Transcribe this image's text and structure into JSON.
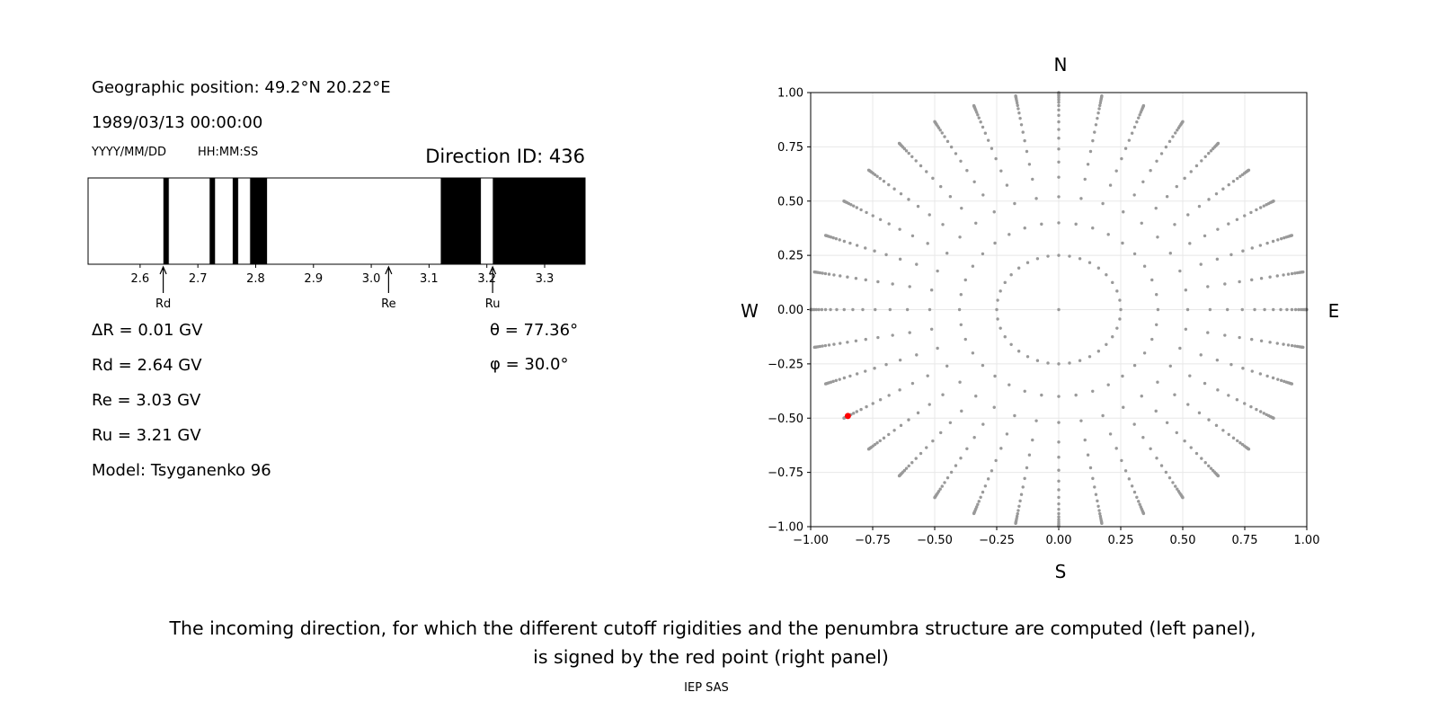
{
  "left_panel": {
    "geo_position": "Geographic position: 49.2°N 20.22°E",
    "datetime": "1989/03/13 00:00:00",
    "date_format": "YYYY/MM/DD",
    "time_format": "HH:MM:SS",
    "direction_id": "Direction ID: 436",
    "delta_r": "ΔR = 0.01 GV",
    "rd": "Rd = 2.64 GV",
    "re": "Re = 3.03 GV",
    "ru": "Ru = 3.21 GV",
    "model": "Model: Tsyganenko 96",
    "theta": "θ = 77.36°",
    "phi": "φ = 30.0°"
  },
  "right_panel": {
    "north": "N",
    "south": "S",
    "west": "W",
    "east": "E"
  },
  "caption": {
    "line1": "The incoming direction, for which the different cutoff rigidities and the penumbra structure are computed (left panel),",
    "line2": "is signed by the red point (right panel)",
    "credit": "IEP SAS"
  },
  "chart_data": [
    {
      "type": "bar",
      "name": "penumbra",
      "xlim": [
        2.51,
        3.37
      ],
      "xticks": [
        "2.6",
        "2.7",
        "2.8",
        "2.9",
        "3.0",
        "3.1",
        "3.2",
        "3.3"
      ],
      "forbidden_bands": [
        [
          2.64,
          2.65
        ],
        [
          2.72,
          2.73
        ],
        [
          2.76,
          2.77
        ],
        [
          2.79,
          2.82
        ],
        [
          3.12,
          3.19
        ],
        [
          3.21,
          3.37
        ]
      ],
      "band_color": "#000000",
      "markers": [
        {
          "label": "Rd",
          "value": 2.64
        },
        {
          "label": "Re",
          "value": 3.03
        },
        {
          "label": "Ru",
          "value": 3.21
        }
      ]
    },
    {
      "type": "scatter",
      "xlim": [
        -1,
        1
      ],
      "ylim": [
        -1,
        1
      ],
      "xticks": [
        "−1.00",
        "−0.75",
        "−0.50",
        "−0.25",
        "0.00",
        "0.25",
        "0.50",
        "0.75",
        "1.00"
      ],
      "yticks": [
        "−1.00",
        "−0.75",
        "−0.50",
        "−0.25",
        "0.00",
        "0.25",
        "0.50",
        "0.75",
        "1.00"
      ],
      "grid": true,
      "point_color": "#999999",
      "center_point": [
        0,
        0
      ],
      "inner_ring": {
        "r": 0.25,
        "count": 36
      },
      "spoke_angle_step_deg": 10,
      "spoke_radii": [
        0.4,
        0.52,
        0.61,
        0.68,
        0.74,
        0.79,
        0.83,
        0.865,
        0.895,
        0.92,
        0.94,
        0.955,
        0.967,
        0.977,
        0.985,
        0.991,
        0.995,
        0.998,
        1.0
      ],
      "selected_point": {
        "x": -0.85,
        "y": -0.49,
        "color": "#ff0000"
      }
    }
  ]
}
